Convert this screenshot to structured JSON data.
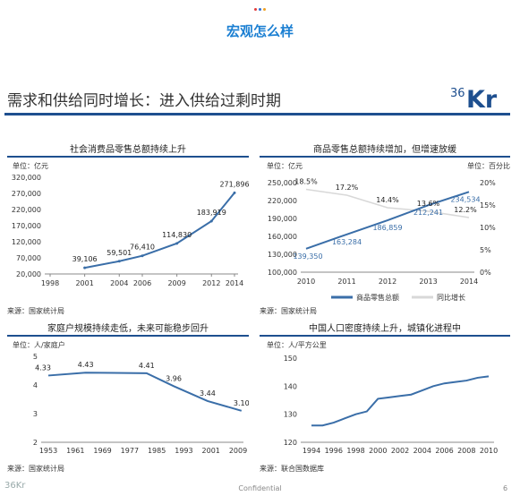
{
  "header": {
    "dots": [
      {
        "color": "#e23b3b"
      },
      {
        "color": "#2d6fd6"
      },
      {
        "color": "#f0a020"
      }
    ],
    "title": "宏观怎么样"
  },
  "slide": {
    "title": "需求和供给同时增长：进入供给过剩时期",
    "logo": "36Kr",
    "footer_logo": "36Kr",
    "footer_text": "Confidential",
    "page_number": "6"
  },
  "panels": [
    {
      "title": "社会消费品零售总额持续上升",
      "unit": "单位：亿元",
      "source": "来源：国家统计局"
    },
    {
      "title": "商品零售总额持续增加，但增速放缓",
      "unit_left": "单位：亿元",
      "unit_right": "单位：百分比",
      "source": "来源：国家统计局"
    },
    {
      "title": "家庭户规模持续走低，未来可能稳步回升",
      "unit": "单位：人/家庭户",
      "source": "来源：国家统计局"
    },
    {
      "title": "中国人口密度持续上升，城镇化进程中",
      "unit": "单位：人/平方公里",
      "source": "来源：联合国数据库"
    }
  ],
  "chart_data": [
    {
      "type": "line",
      "title": "社会消费品零售总额持续上升",
      "x": [
        2001,
        2004,
        2006,
        2009,
        2012,
        2014
      ],
      "series": [
        {
          "values": [
            39106,
            59501,
            76410,
            114830,
            183919,
            271896
          ]
        }
      ],
      "data_labels": [
        "39,106",
        "59,501",
        "76,410",
        "114,830",
        "183,919",
        "271,896"
      ],
      "xticks": [
        "1998",
        "2001",
        "2004",
        "2006",
        "2009",
        "2012",
        "2014"
      ],
      "yticks": [
        "20,000",
        "70,000",
        "120,000",
        "170,000",
        "220,000",
        "270,000",
        "320,000"
      ],
      "ylim": [
        20000,
        320000
      ],
      "color": "#3a6ea8"
    },
    {
      "type": "line",
      "title": "商品零售总额持续增加，但增速放缓",
      "categories": [
        "2010",
        "2011",
        "2012",
        "2013",
        "2014"
      ],
      "series": [
        {
          "name": "商品零售总额",
          "axis": "left",
          "values": [
            139350,
            163284,
            186859,
            212241,
            234534
          ],
          "labels": [
            "139,350",
            "163,284",
            "186,859",
            "212,241",
            "234,534"
          ],
          "color": "#3a6ea8"
        },
        {
          "name": "同比增长",
          "axis": "right",
          "values": [
            18.5,
            17.2,
            14.4,
            13.6,
            12.2
          ],
          "labels": [
            "18.5%",
            "17.2%",
            "14.4%",
            "13.6%",
            "12.2%"
          ],
          "color": "#d8d8d8"
        }
      ],
      "yticks_left": [
        "100,000",
        "130,000",
        "160,000",
        "190,000",
        "220,000",
        "250,000"
      ],
      "yticks_right": [
        "0%",
        "5%",
        "10%",
        "15%",
        "20%"
      ],
      "ylim_left": [
        100000,
        250000
      ],
      "ylim_right": [
        0,
        20
      ],
      "legend": [
        "商品零售总额",
        "同比增长"
      ],
      "legend_position": "bottom"
    },
    {
      "type": "line",
      "title": "家庭户规模持续走低，未来可能稳步回升",
      "x": [
        1953,
        1964,
        1982,
        1990,
        2000,
        2010
      ],
      "series": [
        {
          "values": [
            4.33,
            4.43,
            4.41,
            3.96,
            3.44,
            3.1
          ]
        }
      ],
      "data_labels": [
        "4.33",
        "4.43",
        "4.41",
        "3.96",
        "3.44",
        "3.10"
      ],
      "xticks": [
        "1953",
        "1961",
        "1969",
        "1977",
        "1985",
        "1993",
        "2001",
        "2009"
      ],
      "yticks": [
        "2",
        "3",
        "4",
        "5"
      ],
      "ylim": [
        2,
        5
      ],
      "color": "#3a6ea8"
    },
    {
      "type": "line",
      "title": "中国人口密度持续上升，城镇化进程中",
      "x": [
        1994,
        1995,
        1996,
        1997,
        1998,
        1999,
        2000,
        2001,
        2002,
        2003,
        2004,
        2005,
        2006,
        2007,
        2008,
        2009,
        2010
      ],
      "series": [
        {
          "values": [
            126,
            126,
            127,
            128.5,
            130,
            131,
            135.5,
            136,
            136.5,
            137,
            138.5,
            140,
            141,
            141.5,
            142,
            143,
            143.5
          ]
        }
      ],
      "xticks": [
        "1994",
        "1996",
        "1998",
        "2000",
        "2002",
        "2004",
        "2006",
        "2008",
        "2010"
      ],
      "yticks": [
        "120",
        "130",
        "140",
        "150"
      ],
      "ylim": [
        120,
        150
      ],
      "color": "#3a6ea8"
    }
  ]
}
